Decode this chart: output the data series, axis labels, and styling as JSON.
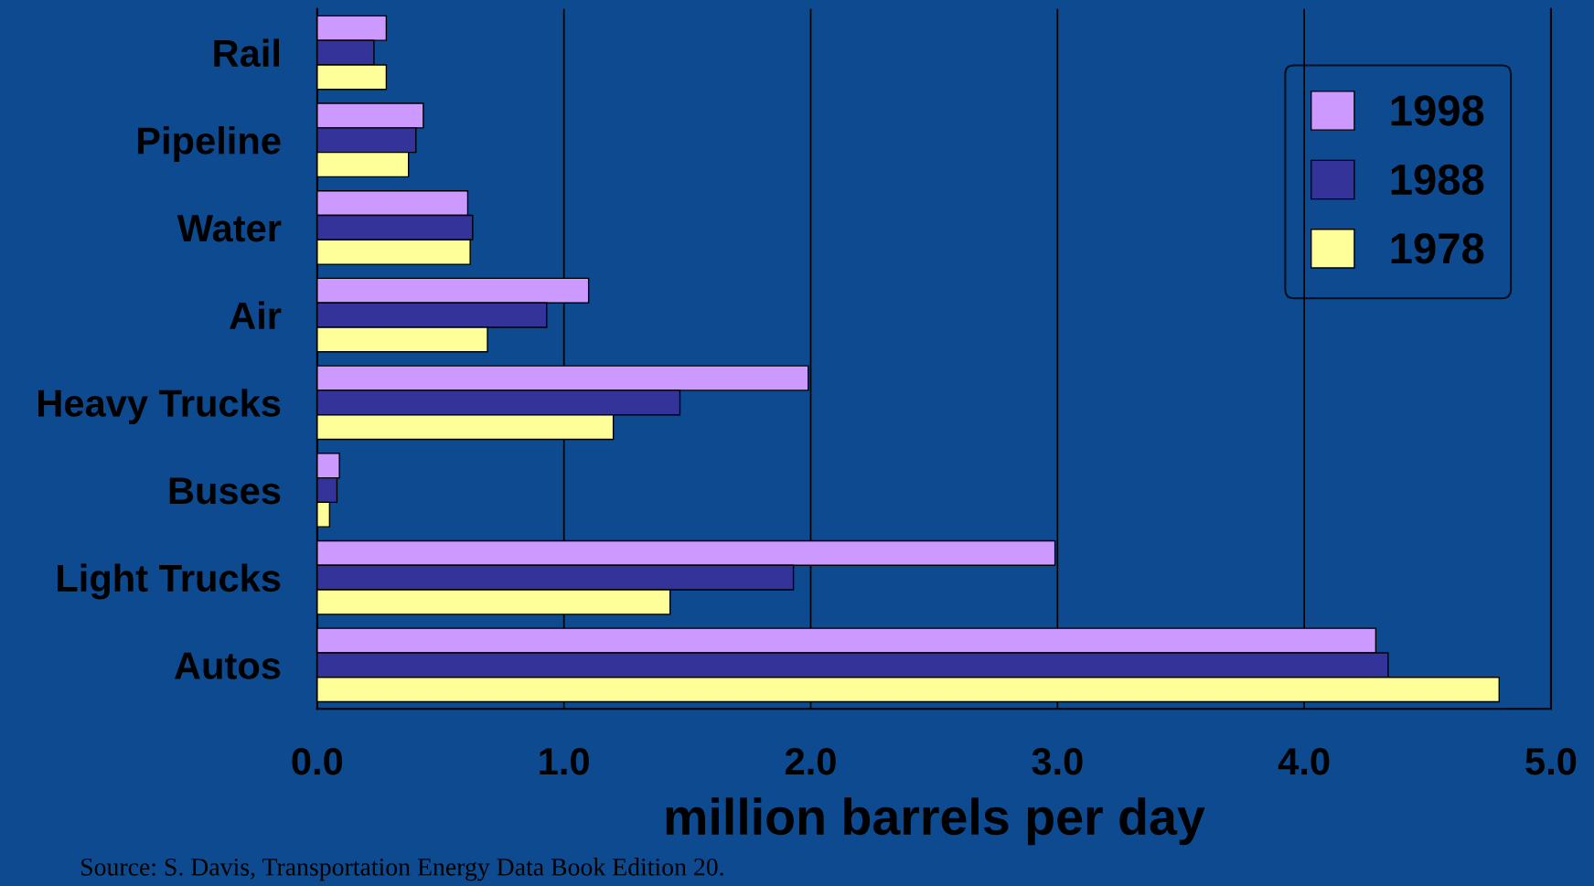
{
  "chart_data": {
    "type": "bar",
    "orientation": "horizontal",
    "categories": [
      "Rail",
      "Pipeline",
      "Water",
      "Air",
      "Heavy Trucks",
      "Buses",
      "Light Trucks",
      "Autos"
    ],
    "series": [
      {
        "name": "1998",
        "color": "#cc99ff",
        "values": [
          0.28,
          0.43,
          0.61,
          1.1,
          1.99,
          0.09,
          2.99,
          4.29
        ]
      },
      {
        "name": "1988",
        "color": "#333399",
        "values": [
          0.23,
          0.4,
          0.63,
          0.93,
          1.47,
          0.08,
          1.93,
          4.34
        ]
      },
      {
        "name": "1978",
        "color": "#ffff99",
        "values": [
          0.28,
          0.37,
          0.62,
          0.69,
          1.2,
          0.05,
          1.43,
          4.79
        ]
      }
    ],
    "xlim": [
      0,
      5
    ],
    "xticks": [
      {
        "value": 0,
        "label": "0.0"
      },
      {
        "value": 1,
        "label": "1.0"
      },
      {
        "value": 2,
        "label": "2.0"
      },
      {
        "value": 3,
        "label": "3.0"
      },
      {
        "value": 4,
        "label": "4.0"
      },
      {
        "value": 5,
        "label": "5.0"
      }
    ],
    "xlabel": "million barrels per day",
    "grid": "x",
    "legend": "top right",
    "annotations": [
      "Source: S. Davis, Transportation Energy Data Book Edition 20."
    ]
  }
}
